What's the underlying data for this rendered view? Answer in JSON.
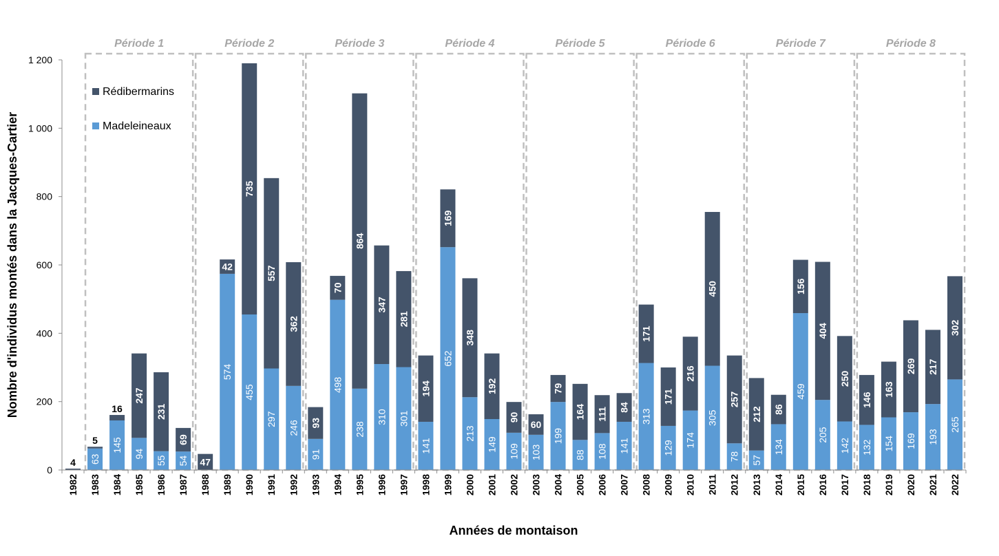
{
  "chart_data": {
    "type": "bar",
    "stacked": true,
    "xlabel": "Années de montaison",
    "ylabel": "Nombre d'individus montés dans la Jacques-Cartier",
    "ylim": [
      0,
      1200
    ],
    "yticks": [
      0,
      200,
      400,
      600,
      800,
      1000,
      1200
    ],
    "ytick_labels": [
      "0",
      "200",
      "400",
      "600",
      "800",
      "1 000",
      "1 200"
    ],
    "grid": false,
    "legend_position": "top-left",
    "categories": [
      "1982",
      "1983",
      "1984",
      "1985",
      "1986",
      "1987",
      "1988",
      "1989",
      "1990",
      "1991",
      "1992",
      "1993",
      "1994",
      "1995",
      "1996",
      "1997",
      "1998",
      "1999",
      "2000",
      "2001",
      "2002",
      "2003",
      "2004",
      "2005",
      "2006",
      "2007",
      "2008",
      "2009",
      "2010",
      "2011",
      "2012",
      "2013",
      "2014",
      "2015",
      "2016",
      "2017",
      "2018",
      "2019",
      "2020",
      "2021",
      "2022"
    ],
    "series": [
      {
        "name": "Madeleineaux",
        "color": "#5b9bd5",
        "values": [
          null,
          63,
          145,
          94,
          55,
          54,
          null,
          574,
          455,
          297,
          246,
          91,
          498,
          238,
          310,
          301,
          141,
          652,
          213,
          149,
          109,
          103,
          199,
          88,
          108,
          141,
          313,
          129,
          174,
          305,
          78,
          57,
          134,
          459,
          205,
          142,
          132,
          154,
          169,
          193,
          265
        ],
        "labels": [
          "",
          "63",
          "145",
          "94",
          "55",
          "54",
          "",
          "574",
          "455",
          "297",
          "246",
          "91",
          "498",
          "238",
          "310",
          "301",
          "141",
          "652",
          "213",
          "149",
          "109",
          "103",
          "199",
          "88",
          "108",
          "141",
          "313",
          "129",
          "174",
          "305",
          "78",
          "57",
          "134",
          "459",
          "205",
          "142",
          "132",
          "154",
          "169",
          "193",
          "265"
        ]
      },
      {
        "name": "Rédibermarins",
        "color": "#44546a",
        "values": [
          4,
          5,
          16,
          247,
          231,
          69,
          47,
          42,
          735,
          557,
          362,
          93,
          70,
          864,
          347,
          281,
          194,
          169,
          348,
          192,
          90,
          60,
          79,
          164,
          111,
          84,
          171,
          171,
          216,
          450,
          257,
          212,
          86,
          156,
          404,
          250,
          146,
          163,
          269,
          217,
          302
        ],
        "labels": [
          "4",
          "5",
          "16",
          "247",
          "231",
          "69",
          "47",
          "42",
          "735",
          "557",
          "362",
          "93",
          "70",
          "864",
          "347",
          "281",
          "194",
          "169",
          "348",
          "192",
          "90",
          "60",
          "79",
          "164",
          "111",
          "84",
          "171",
          "171",
          "216",
          "450",
          "257",
          "212",
          "86",
          "156",
          "404",
          "250",
          "146",
          "163",
          "269",
          "217",
          "302"
        ]
      }
    ],
    "periods": [
      {
        "label": "Période 1",
        "start": "1983",
        "end": "1987"
      },
      {
        "label": "Période 2",
        "start": "1988",
        "end": "1992"
      },
      {
        "label": "Période 3",
        "start": "1993",
        "end": "1997"
      },
      {
        "label": "Période 4",
        "start": "1998",
        "end": "2002"
      },
      {
        "label": "Période 5",
        "start": "2003",
        "end": "2007"
      },
      {
        "label": "Période 6",
        "start": "2008",
        "end": "2012"
      },
      {
        "label": "Période 7",
        "start": "2013",
        "end": "2017"
      },
      {
        "label": "Période 8",
        "start": "2018",
        "end": "2022"
      }
    ],
    "legend": [
      {
        "name": "Rédibermarins",
        "color": "#44546a"
      },
      {
        "name": "Madeleineaux",
        "color": "#5b9bd5"
      }
    ]
  }
}
